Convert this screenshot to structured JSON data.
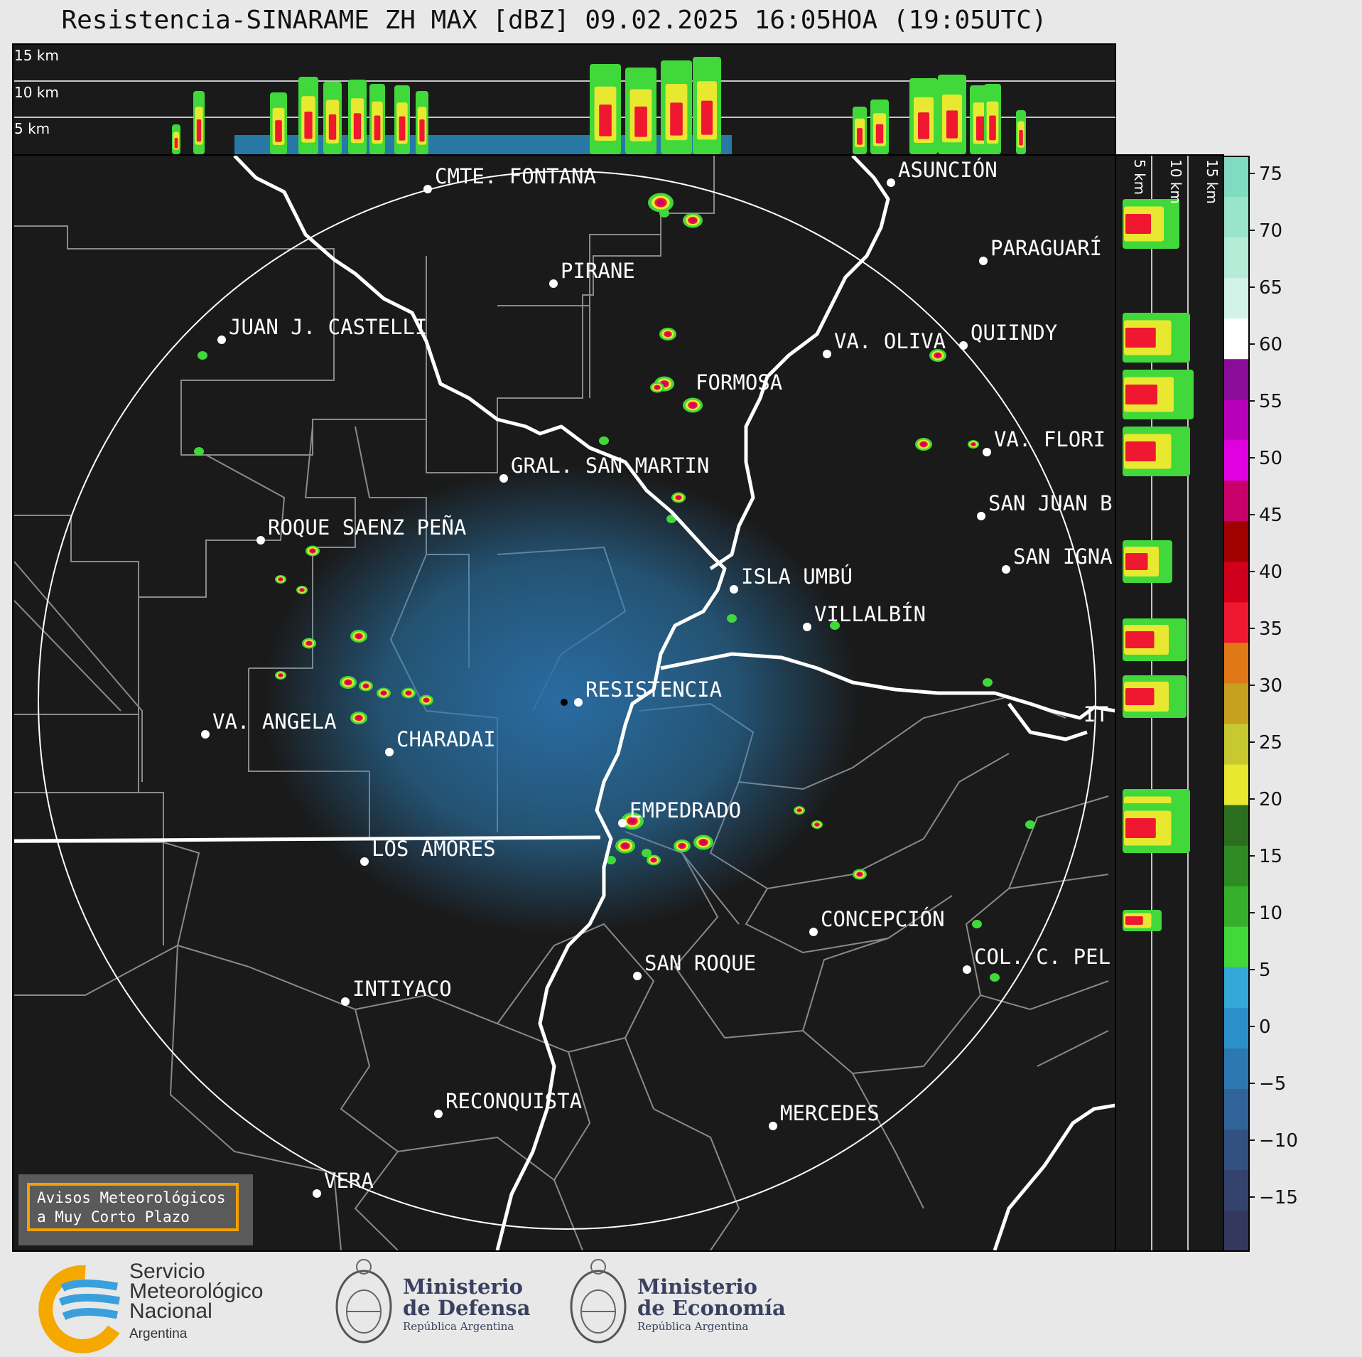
{
  "header": {
    "title": "Resistencia-SINARAME ZH MAX [dBZ] 09.02.2025 16:05HOA (19:05UTC)"
  },
  "top_profile": {
    "height_labels": [
      "15 km",
      "10 km",
      "5 km"
    ]
  },
  "side_profile": {
    "height_labels": [
      "5 km",
      "10 km",
      "15 km"
    ]
  },
  "colorbar": {
    "ticks": [
      "75",
      "70",
      "65",
      "60",
      "55",
      "50",
      "45",
      "40",
      "35",
      "30",
      "25",
      "20",
      "15",
      "10",
      "5",
      "0",
      "−5",
      "−10",
      "−15"
    ],
    "colors_top_to_bottom": [
      "#7fdcc0",
      "#99e4cb",
      "#b4ecd8",
      "#d2f4e8",
      "#ffffff",
      "#8a0c98",
      "#b800b8",
      "#e000e0",
      "#c8006a",
      "#a00000",
      "#d0001c",
      "#f01830",
      "#e07818",
      "#c8a020",
      "#c8c830",
      "#e8e830",
      "#2a6e1e",
      "#2e8a22",
      "#36b02a",
      "#40d83a",
      "#34a8d8",
      "#2c90c8",
      "#2c78b0",
      "#306498",
      "#335082",
      "#34426e",
      "#35385e"
    ]
  },
  "cities": [
    {
      "name": "CMTE. FONTANA"
    },
    {
      "name": "ASUNCIÓN"
    },
    {
      "name": "PARAGUARÍ"
    },
    {
      "name": "PIRANE"
    },
    {
      "name": "JUAN J. CASTELLI"
    },
    {
      "name": "VA. OLIVA"
    },
    {
      "name": "QUIINDY"
    },
    {
      "name": "FORMOSA"
    },
    {
      "name": "VA. FLORI"
    },
    {
      "name": "GRAL. SAN MARTIN"
    },
    {
      "name": "SAN JUAN B"
    },
    {
      "name": "ROQUE SAENZ PEÑA"
    },
    {
      "name": "SAN IGNA"
    },
    {
      "name": "ISLA UMBÚ"
    },
    {
      "name": "VILLALBÍN"
    },
    {
      "name": "RESISTENCIA"
    },
    {
      "name": "VA. ANGELA"
    },
    {
      "name": "CHARADAI"
    },
    {
      "name": "IT"
    },
    {
      "name": "EMPEDRADO"
    },
    {
      "name": "LOS AMORES"
    },
    {
      "name": "CONCEPCIÓN"
    },
    {
      "name": "SAN ROQUE"
    },
    {
      "name": "COL. C. PEL"
    },
    {
      "name": "INTIYACO"
    },
    {
      "name": "RECONQUISTA"
    },
    {
      "name": "MERCEDES"
    },
    {
      "name": "VERA"
    }
  ],
  "warning_box": {
    "line1": "Avisos Meteorológicos",
    "line2": "a Muy Corto Plazo"
  },
  "logos": {
    "smn_line1": "Servicio",
    "smn_line2": "Meteorológico",
    "smn_line3": "Nacional",
    "smn_line4": "Argentina",
    "defensa_line1": "Ministerio",
    "defensa_line2": "de Defensa",
    "defensa_line3": "República Argentina",
    "economia_line1": "Ministerio",
    "economia_line2": "de Economía",
    "economia_line3": "República Argentina"
  }
}
